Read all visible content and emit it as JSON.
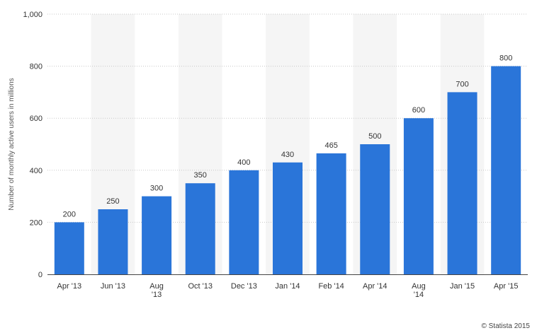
{
  "credit": "© Statista 2015",
  "chart_data": {
    "type": "bar",
    "categories": [
      [
        "Apr '13"
      ],
      [
        "Jun '13"
      ],
      [
        "Aug",
        "'13"
      ],
      [
        "Oct '13"
      ],
      [
        "Dec '13"
      ],
      [
        "Jan '14"
      ],
      [
        "Feb '14"
      ],
      [
        "Apr '14"
      ],
      [
        "Aug",
        "'14"
      ],
      [
        "Jan '15"
      ],
      [
        "Apr '15"
      ]
    ],
    "values": [
      200,
      250,
      300,
      350,
      400,
      430,
      465,
      500,
      600,
      700,
      800
    ],
    "value_labels": [
      "200",
      "250",
      "300",
      "350",
      "400",
      "430",
      "465",
      "500",
      "600",
      "700",
      "800"
    ],
    "ylabel": "Number of monthly active users in millions",
    "ylim": [
      0,
      1000
    ],
    "yticks": [
      0,
      200,
      400,
      600,
      800,
      1000
    ],
    "ytick_labels": [
      "0",
      "200",
      "400",
      "600",
      "800",
      "1,000"
    ],
    "grid": true,
    "legend": "none",
    "colors": {
      "bar": "#2a75d9",
      "band": "#f5f5f5",
      "grid": "#c8c8c8",
      "axis": "#444444"
    }
  }
}
